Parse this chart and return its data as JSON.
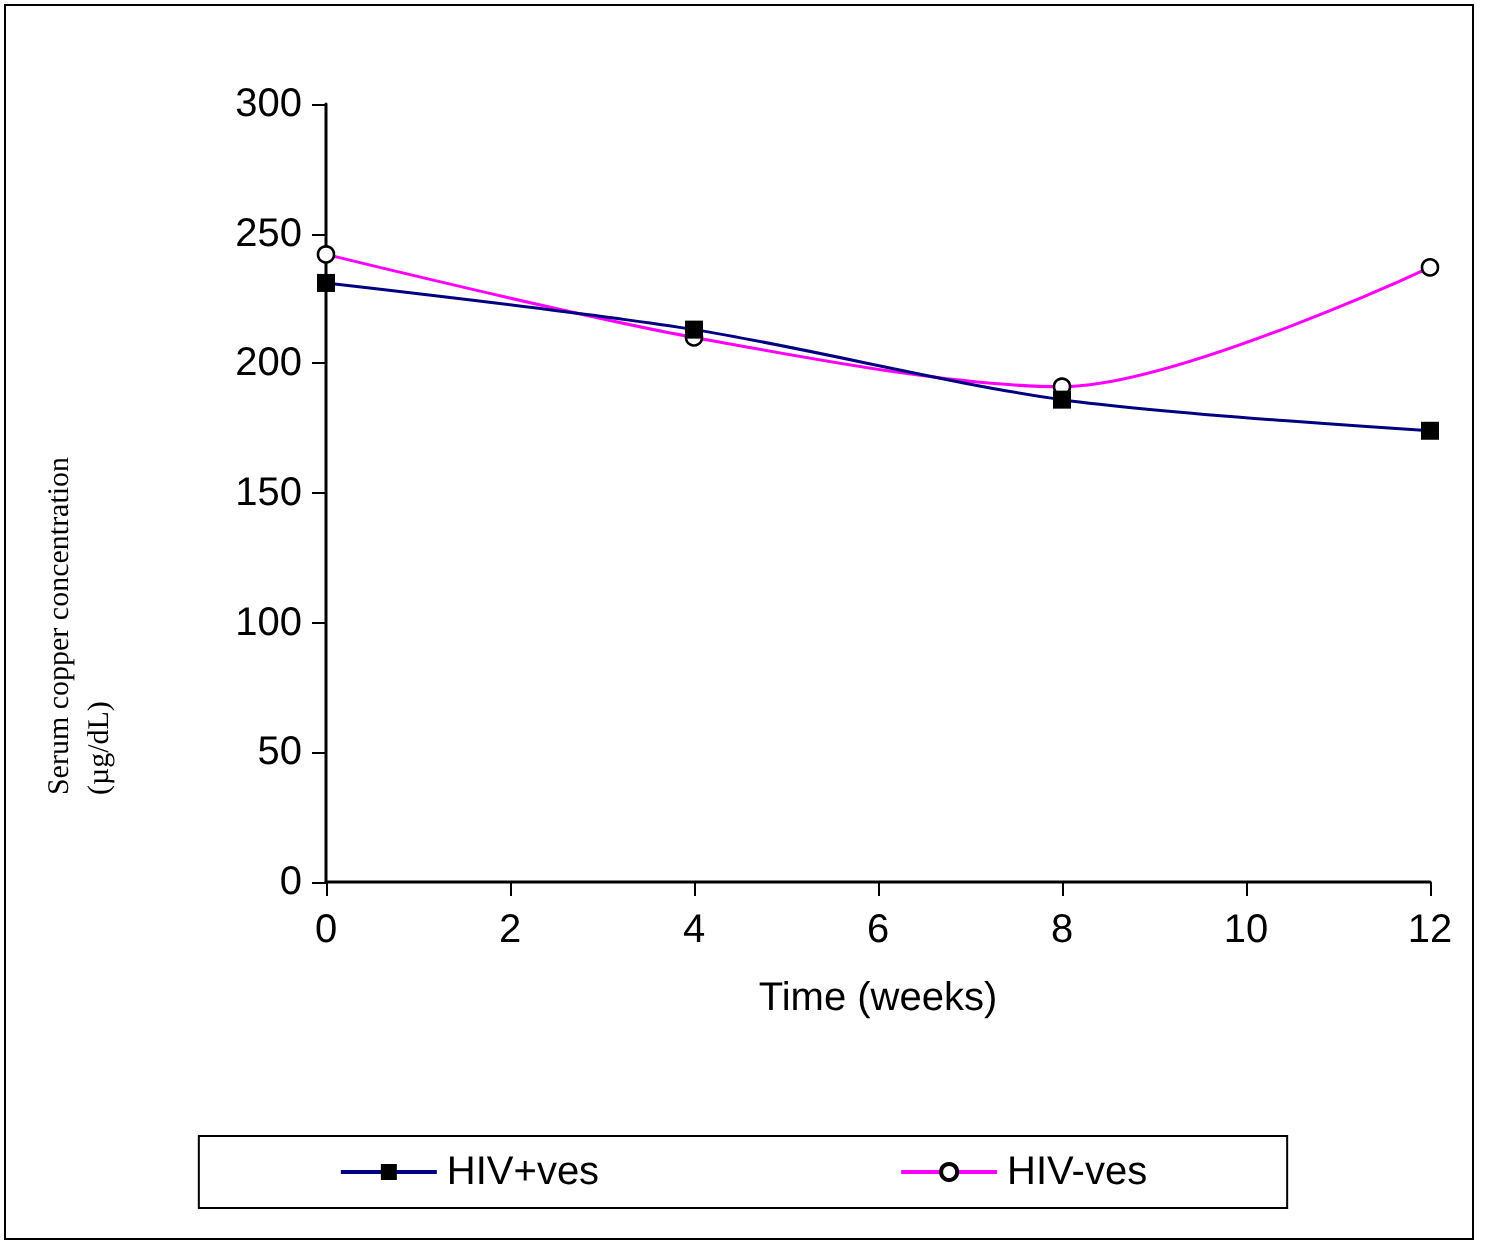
{
  "chart_data": {
    "type": "line",
    "xlabel": "Time (weeks)",
    "ylabel": "Serum copper concentration\n(µg/dL)",
    "x": [
      0,
      4,
      8,
      12
    ],
    "series": [
      {
        "name": "HIV+ves",
        "color": "#000080",
        "marker": "square",
        "values": [
          231,
          213,
          186,
          174
        ]
      },
      {
        "name": "HIV-ves",
        "color": "#ff00ff",
        "marker": "circle",
        "values": [
          242,
          210,
          191,
          237
        ]
      }
    ],
    "xlim": [
      0,
      12
    ],
    "xticks": [
      0,
      2,
      4,
      6,
      8,
      10,
      12
    ],
    "ylim": [
      0,
      300
    ],
    "yticks": [
      0,
      50,
      100,
      150,
      200,
      250,
      300
    ],
    "grid": false,
    "legend": "bottom"
  }
}
